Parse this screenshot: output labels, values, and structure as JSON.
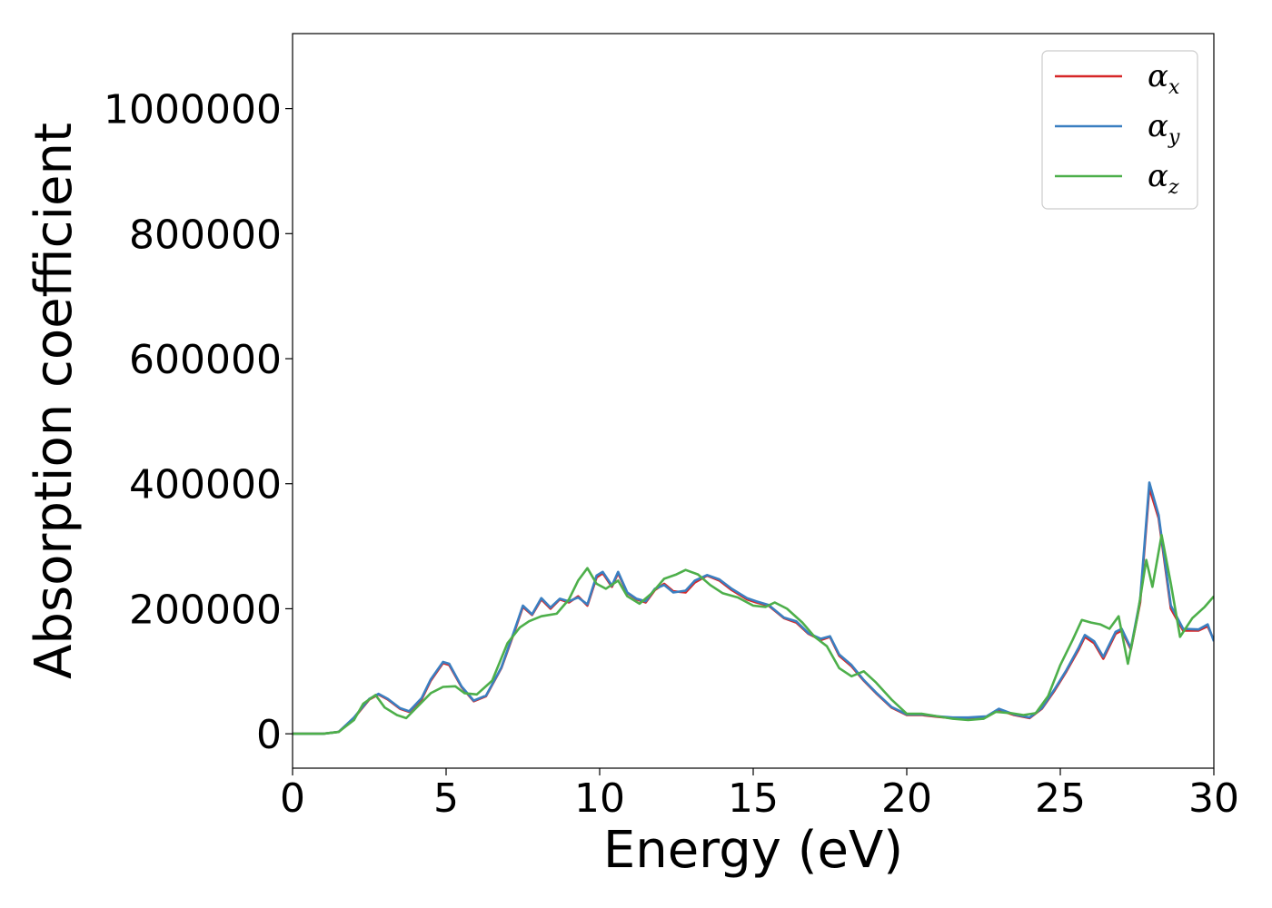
{
  "chart_data": {
    "type": "line",
    "title": "",
    "xlabel": "Energy (eV)",
    "ylabel": "Absorption coefficient",
    "xlim": [
      0,
      30
    ],
    "ylim": [
      -55000,
      1120000
    ],
    "x_ticks": [
      0,
      5,
      10,
      15,
      20,
      25,
      30
    ],
    "x_tick_labels": [
      "0",
      "5",
      "10",
      "15",
      "20",
      "25",
      "30"
    ],
    "y_ticks": [
      0,
      200000,
      400000,
      600000,
      800000,
      1000000
    ],
    "y_tick_labels": [
      "0",
      "200000",
      "400000",
      "600000",
      "800000",
      "1000000"
    ],
    "grid": false,
    "legend_position": "top-right",
    "legend": [
      {
        "base": "α",
        "sub": "x",
        "color": "#d62728"
      },
      {
        "base": "α",
        "sub": "y",
        "color": "#3a7fc1"
      },
      {
        "base": "α",
        "sub": "z",
        "color": "#4daf4a"
      }
    ],
    "series": [
      {
        "name": "αx",
        "color": "#d62728",
        "points": [
          [
            0,
            0
          ],
          [
            1.0,
            0
          ],
          [
            1.5,
            3000
          ],
          [
            2.0,
            25000
          ],
          [
            2.5,
            55000
          ],
          [
            2.8,
            63000
          ],
          [
            3.1,
            55000
          ],
          [
            3.5,
            40000
          ],
          [
            3.8,
            35000
          ],
          [
            4.2,
            55000
          ],
          [
            4.5,
            85000
          ],
          [
            4.9,
            113000
          ],
          [
            5.1,
            110000
          ],
          [
            5.5,
            75000
          ],
          [
            5.9,
            52000
          ],
          [
            6.3,
            60000
          ],
          [
            6.8,
            105000
          ],
          [
            7.2,
            160000
          ],
          [
            7.5,
            203000
          ],
          [
            7.8,
            190000
          ],
          [
            8.1,
            215000
          ],
          [
            8.4,
            200000
          ],
          [
            8.7,
            215000
          ],
          [
            9.0,
            210000
          ],
          [
            9.3,
            220000
          ],
          [
            9.6,
            205000
          ],
          [
            9.9,
            250000
          ],
          [
            10.1,
            257000
          ],
          [
            10.4,
            235000
          ],
          [
            10.6,
            257000
          ],
          [
            10.9,
            225000
          ],
          [
            11.2,
            215000
          ],
          [
            11.5,
            210000
          ],
          [
            11.8,
            230000
          ],
          [
            12.1,
            240000
          ],
          [
            12.4,
            228000
          ],
          [
            12.8,
            226000
          ],
          [
            13.1,
            242000
          ],
          [
            13.5,
            253000
          ],
          [
            13.9,
            245000
          ],
          [
            14.3,
            230000
          ],
          [
            14.8,
            215000
          ],
          [
            15.1,
            210000
          ],
          [
            15.5,
            205000
          ],
          [
            16.0,
            185000
          ],
          [
            16.4,
            178000
          ],
          [
            16.8,
            160000
          ],
          [
            17.2,
            150000
          ],
          [
            17.5,
            155000
          ],
          [
            17.8,
            125000
          ],
          [
            18.2,
            108000
          ],
          [
            18.6,
            85000
          ],
          [
            19.0,
            65000
          ],
          [
            19.5,
            42000
          ],
          [
            20.0,
            30000
          ],
          [
            20.5,
            30000
          ],
          [
            21.0,
            27000
          ],
          [
            21.5,
            25000
          ],
          [
            22.0,
            25000
          ],
          [
            22.6,
            27000
          ],
          [
            23.0,
            38000
          ],
          [
            23.5,
            30000
          ],
          [
            24.0,
            25000
          ],
          [
            24.4,
            40000
          ],
          [
            24.8,
            68000
          ],
          [
            25.2,
            100000
          ],
          [
            25.6,
            135000
          ],
          [
            25.8,
            155000
          ],
          [
            26.1,
            145000
          ],
          [
            26.4,
            120000
          ],
          [
            26.8,
            160000
          ],
          [
            27.0,
            165000
          ],
          [
            27.3,
            135000
          ],
          [
            27.6,
            210000
          ],
          [
            27.9,
            393000
          ],
          [
            28.2,
            345000
          ],
          [
            28.6,
            200000
          ],
          [
            29.0,
            165000
          ],
          [
            29.5,
            165000
          ],
          [
            29.8,
            172000
          ],
          [
            30.0,
            150000
          ]
        ]
      },
      {
        "name": "αy",
        "color": "#3a7fc1",
        "points": [
          [
            0,
            0
          ],
          [
            1.0,
            0
          ],
          [
            1.5,
            3000
          ],
          [
            2.0,
            26000
          ],
          [
            2.5,
            56000
          ],
          [
            2.8,
            64000
          ],
          [
            3.1,
            56000
          ],
          [
            3.5,
            41000
          ],
          [
            3.8,
            36000
          ],
          [
            4.2,
            57000
          ],
          [
            4.5,
            87000
          ],
          [
            4.9,
            115000
          ],
          [
            5.1,
            112000
          ],
          [
            5.5,
            76000
          ],
          [
            5.9,
            53000
          ],
          [
            6.3,
            61000
          ],
          [
            6.8,
            106000
          ],
          [
            7.2,
            162000
          ],
          [
            7.5,
            205000
          ],
          [
            7.8,
            191000
          ],
          [
            8.1,
            217000
          ],
          [
            8.4,
            202000
          ],
          [
            8.7,
            216000
          ],
          [
            9.0,
            212000
          ],
          [
            9.3,
            218000
          ],
          [
            9.6,
            207000
          ],
          [
            9.9,
            253000
          ],
          [
            10.1,
            259000
          ],
          [
            10.4,
            237000
          ],
          [
            10.6,
            259000
          ],
          [
            10.9,
            226000
          ],
          [
            11.2,
            216000
          ],
          [
            11.5,
            212000
          ],
          [
            11.8,
            232000
          ],
          [
            12.1,
            238000
          ],
          [
            12.4,
            226000
          ],
          [
            12.8,
            229000
          ],
          [
            13.1,
            245000
          ],
          [
            13.5,
            254000
          ],
          [
            13.9,
            247000
          ],
          [
            14.3,
            232000
          ],
          [
            14.8,
            217000
          ],
          [
            15.1,
            212000
          ],
          [
            15.5,
            206000
          ],
          [
            16.0,
            186000
          ],
          [
            16.4,
            180000
          ],
          [
            16.8,
            161000
          ],
          [
            17.2,
            152000
          ],
          [
            17.5,
            156000
          ],
          [
            17.8,
            127000
          ],
          [
            18.2,
            110000
          ],
          [
            18.6,
            86000
          ],
          [
            19.0,
            66000
          ],
          [
            19.5,
            43000
          ],
          [
            20.0,
            31000
          ],
          [
            20.5,
            31000
          ],
          [
            21.0,
            28000
          ],
          [
            21.5,
            26000
          ],
          [
            22.0,
            26000
          ],
          [
            22.6,
            28000
          ],
          [
            23.0,
            40000
          ],
          [
            23.5,
            31000
          ],
          [
            24.0,
            26000
          ],
          [
            24.4,
            41000
          ],
          [
            24.8,
            70000
          ],
          [
            25.2,
            102000
          ],
          [
            25.6,
            138000
          ],
          [
            25.8,
            158000
          ],
          [
            26.1,
            148000
          ],
          [
            26.4,
            123000
          ],
          [
            26.8,
            163000
          ],
          [
            27.0,
            168000
          ],
          [
            27.3,
            137000
          ],
          [
            27.6,
            215000
          ],
          [
            27.9,
            402000
          ],
          [
            28.2,
            350000
          ],
          [
            28.6,
            205000
          ],
          [
            29.0,
            168000
          ],
          [
            29.5,
            167000
          ],
          [
            29.8,
            175000
          ],
          [
            30.0,
            148000
          ]
        ]
      },
      {
        "name": "αz",
        "color": "#4daf4a",
        "points": [
          [
            0,
            0
          ],
          [
            1.0,
            0
          ],
          [
            1.5,
            3000
          ],
          [
            2.0,
            22000
          ],
          [
            2.3,
            48000
          ],
          [
            2.7,
            62000
          ],
          [
            3.0,
            42000
          ],
          [
            3.4,
            30000
          ],
          [
            3.7,
            25000
          ],
          [
            4.1,
            45000
          ],
          [
            4.5,
            65000
          ],
          [
            4.9,
            75000
          ],
          [
            5.3,
            76000
          ],
          [
            5.6,
            65000
          ],
          [
            6.0,
            63000
          ],
          [
            6.5,
            85000
          ],
          [
            7.0,
            145000
          ],
          [
            7.4,
            170000
          ],
          [
            7.7,
            180000
          ],
          [
            8.1,
            188000
          ],
          [
            8.6,
            192000
          ],
          [
            9.0,
            215000
          ],
          [
            9.3,
            245000
          ],
          [
            9.6,
            265000
          ],
          [
            9.9,
            240000
          ],
          [
            10.2,
            232000
          ],
          [
            10.6,
            245000
          ],
          [
            10.9,
            220000
          ],
          [
            11.3,
            208000
          ],
          [
            11.7,
            225000
          ],
          [
            12.1,
            248000
          ],
          [
            12.5,
            255000
          ],
          [
            12.8,
            262000
          ],
          [
            13.2,
            255000
          ],
          [
            13.6,
            238000
          ],
          [
            14.0,
            225000
          ],
          [
            14.5,
            218000
          ],
          [
            15.0,
            205000
          ],
          [
            15.4,
            203000
          ],
          [
            15.7,
            210000
          ],
          [
            16.1,
            200000
          ],
          [
            16.6,
            178000
          ],
          [
            17.0,
            155000
          ],
          [
            17.4,
            140000
          ],
          [
            17.8,
            105000
          ],
          [
            18.2,
            92000
          ],
          [
            18.6,
            100000
          ],
          [
            19.0,
            82000
          ],
          [
            19.5,
            55000
          ],
          [
            20.0,
            32000
          ],
          [
            20.5,
            32000
          ],
          [
            21.0,
            28000
          ],
          [
            21.5,
            24000
          ],
          [
            22.0,
            22000
          ],
          [
            22.5,
            24000
          ],
          [
            22.9,
            35000
          ],
          [
            23.4,
            33000
          ],
          [
            23.8,
            30000
          ],
          [
            24.2,
            33000
          ],
          [
            24.6,
            60000
          ],
          [
            25.0,
            110000
          ],
          [
            25.4,
            150000
          ],
          [
            25.7,
            182000
          ],
          [
            26.0,
            178000
          ],
          [
            26.3,
            175000
          ],
          [
            26.6,
            168000
          ],
          [
            26.9,
            188000
          ],
          [
            27.2,
            112000
          ],
          [
            27.5,
            185000
          ],
          [
            27.8,
            278000
          ],
          [
            28.0,
            235000
          ],
          [
            28.3,
            318000
          ],
          [
            28.6,
            240000
          ],
          [
            28.9,
            155000
          ],
          [
            29.3,
            185000
          ],
          [
            29.7,
            203000
          ],
          [
            30.0,
            220000
          ]
        ]
      }
    ]
  }
}
